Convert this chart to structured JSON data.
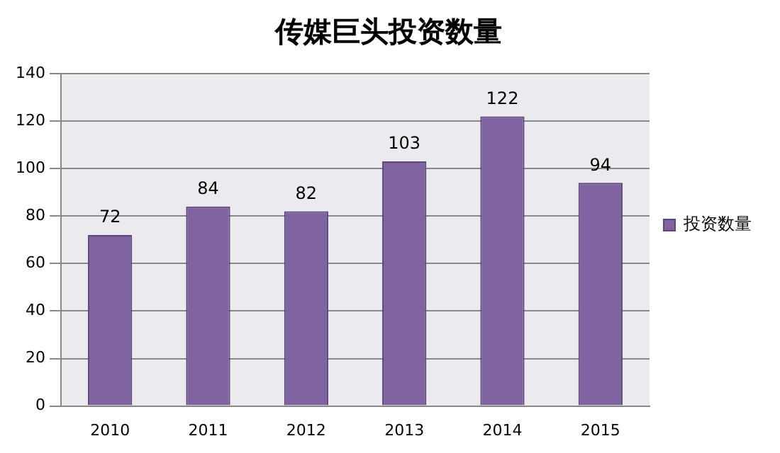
{
  "chart_data": {
    "type": "bar",
    "title": "传媒巨头投资数量",
    "categories": [
      "2010",
      "2011",
      "2012",
      "2013",
      "2014",
      "2015"
    ],
    "series": [
      {
        "name": "投资数量",
        "color": "#8064a2",
        "values": [
          72,
          84,
          82,
          103,
          122,
          94
        ]
      }
    ],
    "ylim": [
      0,
      140
    ],
    "yticks": [
      0,
      20,
      40,
      60,
      80,
      100,
      120,
      140
    ],
    "grid": "y",
    "legend": "right",
    "data_labels": true
  }
}
